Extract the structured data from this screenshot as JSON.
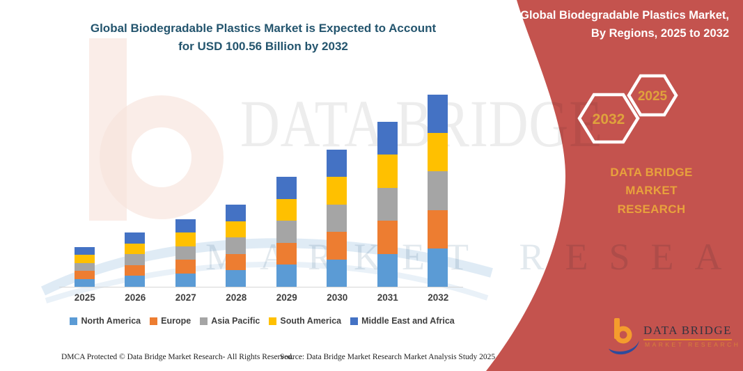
{
  "title": {
    "line1": "Global Biodegradable Plastics Market is Expected to Account",
    "line2": "for USD 100.56 Billion by 2032"
  },
  "banner": {
    "heading_line1": "Global Biodegradable Plastics Market,",
    "heading_line2": "By Regions, 2025 to 2032",
    "hexagons": [
      {
        "label": "2032"
      },
      {
        "label": "2025"
      }
    ],
    "brand_line1": "DATA BRIDGE MARKET",
    "brand_line2": "RESEARCH",
    "color": "#c4534e",
    "accent_gold": "#e2a23c"
  },
  "logo": {
    "name": "DATA BRIDGE",
    "subtitle": "MARKET RESEARCH"
  },
  "watermark": {
    "text_top": "DATA BRIDGE",
    "text_bottom": "MARKET RESEARCH"
  },
  "chart_data": {
    "type": "stacked-bar",
    "title": "Global Biodegradable Plastics Market is Expected to Account for USD 100.56 Billion by 2032",
    "unit": "USD Billion",
    "categories": [
      "2025",
      "2026",
      "2027",
      "2028",
      "2029",
      "2030",
      "2031",
      "2032"
    ],
    "series": [
      {
        "name": "North America",
        "color": "#5b9bd5",
        "values": [
          4.2,
          5.7,
          7.1,
          8.6,
          11.5,
          14.4,
          17.3,
          20.1
        ]
      },
      {
        "name": "Europe",
        "color": "#ed7d31",
        "values": [
          4.2,
          5.7,
          7.1,
          8.6,
          11.5,
          14.4,
          17.3,
          20.1
        ]
      },
      {
        "name": "Asia Pacific",
        "color": "#a5a5a5",
        "values": [
          4.2,
          5.7,
          7.1,
          8.6,
          11.5,
          14.4,
          17.3,
          20.1
        ]
      },
      {
        "name": "South America",
        "color": "#ffc000",
        "values": [
          4.2,
          5.7,
          7.1,
          8.6,
          11.5,
          14.4,
          17.3,
          20.1
        ]
      },
      {
        "name": "Middle East and Africa",
        "color": "#4472c4",
        "values": [
          4.2,
          5.7,
          7.1,
          8.6,
          11.5,
          14.4,
          17.3,
          20.1
        ]
      }
    ],
    "totals": [
      21.1,
      28.4,
      35.7,
      43.0,
      57.6,
      71.8,
      86.3,
      100.56
    ],
    "ylim": [
      0,
      107
    ],
    "gridlines": false,
    "legend_position": "bottom",
    "xlabel": "",
    "ylabel": ""
  },
  "footer": {
    "left": "DMCA Protected © Data Bridge Market Research-  All Rights Reserved.",
    "right": "Source: Data Bridge Market Research  Market Analysis Study 2025"
  }
}
